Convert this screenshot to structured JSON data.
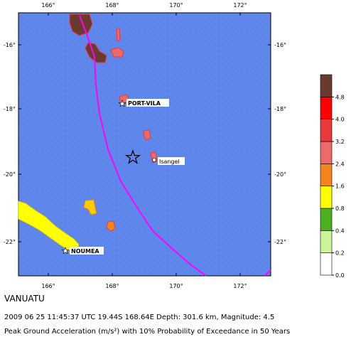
{
  "map": {
    "title": "VANUATU",
    "event": "2009 06 25 11:45:37 UTC 19.44S 168.64E Depth: 301.6 km, Magnitude: 4.5",
    "caption": "Peak Ground Acceleration (m/s²) with 10% Probability of Exceedance in 50 Years",
    "lon_labels": [
      "166°",
      "168°",
      "170°",
      "172°"
    ],
    "lat_labels": [
      "-16°",
      "-18°",
      "-20°",
      "-22°"
    ],
    "places": [
      "PORT-VILA",
      "Isangel",
      "NOUMEA"
    ]
  },
  "legend": {
    "labels": [
      "0.0",
      "0.2",
      "0.4",
      "0.8",
      "1.6",
      "2.4",
      "3.2",
      "4.0",
      "4.8"
    ],
    "colors": [
      "#ffffff",
      "#ccf59a",
      "#4caf1e",
      "#ffff00",
      "#f5841f",
      "#ec6a6a",
      "#e83a3a",
      "#ff0000",
      "#6b3a2f"
    ]
  }
}
